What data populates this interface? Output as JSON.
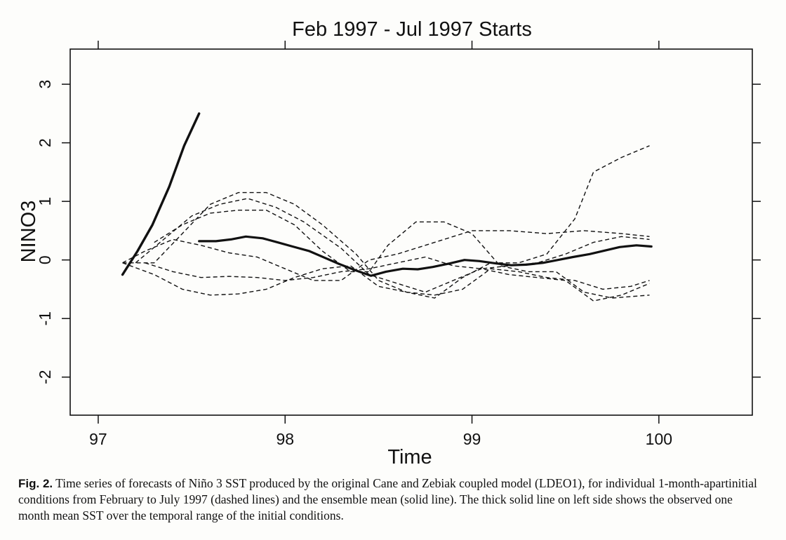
{
  "chart_data": {
    "type": "line",
    "title": "Feb 1997 - Jul 1997 Starts",
    "xlabel": "Time",
    "ylabel": "NINO3",
    "xlim": [
      96.85,
      100.5
    ],
    "ylim": [
      -2.65,
      3.6
    ],
    "xticks": [
      97,
      98,
      99,
      100
    ],
    "xtick_labels": [
      "97",
      "98",
      "99",
      "100"
    ],
    "yticks": [
      -2,
      -1,
      0,
      1,
      2,
      3
    ],
    "ytick_labels": [
      "-2",
      "-1",
      "0",
      "1",
      "2",
      "3"
    ],
    "grid": false,
    "legend": "none",
    "series": [
      {
        "style": "observed-thick-solid",
        "x": [
          97.13,
          97.21,
          97.29,
          97.38,
          97.46,
          97.54
        ],
        "y": [
          -0.25,
          0.15,
          0.6,
          1.25,
          1.95,
          2.5
        ]
      },
      {
        "style": "ensemble-mean-solid",
        "x": [
          97.54,
          97.63,
          97.71,
          97.79,
          97.88,
          97.96,
          98.04,
          98.13,
          98.21,
          98.29,
          98.38,
          98.46,
          98.54,
          98.63,
          98.71,
          98.79,
          98.88,
          98.96,
          99.04,
          99.13,
          99.21,
          99.29,
          99.38,
          99.46,
          99.54,
          99.63,
          99.71,
          99.79,
          99.88,
          99.96
        ],
        "y": [
          0.32,
          0.32,
          0.35,
          0.4,
          0.37,
          0.3,
          0.23,
          0.15,
          0.04,
          -0.07,
          -0.18,
          -0.27,
          -0.2,
          -0.15,
          -0.16,
          -0.12,
          -0.06,
          0.0,
          -0.02,
          -0.06,
          -0.09,
          -0.08,
          -0.05,
          0.0,
          0.05,
          0.1,
          0.16,
          0.22,
          0.25,
          0.23
        ]
      },
      {
        "style": "dashed",
        "x": [
          97.13,
          97.3,
          97.45,
          97.6,
          97.75,
          97.9,
          98.05,
          98.2,
          98.38,
          98.5,
          98.65,
          98.8,
          98.95,
          99.1,
          99.25,
          99.4,
          99.55,
          99.65,
          99.8,
          99.95
        ],
        "y": [
          -0.05,
          -0.05,
          0.45,
          0.95,
          1.15,
          1.15,
          0.95,
          0.6,
          0.1,
          -0.35,
          -0.55,
          -0.65,
          -0.3,
          -0.05,
          -0.05,
          0.1,
          0.7,
          1.5,
          1.75,
          1.95
        ]
      },
      {
        "style": "dashed",
        "x": [
          97.2,
          97.35,
          97.5,
          97.65,
          97.8,
          97.95,
          98.1,
          98.3,
          98.45,
          98.6,
          98.75,
          98.9,
          99.05,
          99.2,
          99.35,
          99.5,
          99.65,
          99.8,
          99.95
        ],
        "y": [
          -0.05,
          0.35,
          0.75,
          0.95,
          1.05,
          0.9,
          0.65,
          0.2,
          -0.25,
          -0.4,
          -0.55,
          -0.35,
          -0.15,
          -0.25,
          -0.3,
          -0.35,
          -0.7,
          -0.6,
          -0.4
        ]
      },
      {
        "style": "dashed",
        "x": [
          97.3,
          97.45,
          97.6,
          97.75,
          97.9,
          98.05,
          98.2,
          98.35,
          98.45,
          98.55,
          98.7,
          98.85,
          99.0,
          99.15,
          99.3,
          99.45,
          99.6,
          99.75,
          99.95
        ],
        "y": [
          0.3,
          0.6,
          0.8,
          0.85,
          0.85,
          0.6,
          0.15,
          -0.2,
          -0.2,
          0.25,
          0.65,
          0.65,
          0.45,
          -0.1,
          -0.2,
          -0.2,
          -0.55,
          -0.65,
          -0.6
        ]
      },
      {
        "style": "dashed",
        "x": [
          97.13,
          97.25,
          97.4,
          97.55,
          97.7,
          97.85,
          98.0,
          98.15,
          98.3,
          98.45,
          98.6,
          98.8,
          99.0,
          99.2,
          99.4,
          99.6,
          99.8,
          99.95
        ],
        "y": [
          -0.05,
          0.15,
          0.35,
          0.25,
          0.12,
          0.05,
          -0.15,
          -0.35,
          -0.35,
          0.0,
          0.1,
          0.3,
          0.5,
          0.5,
          0.45,
          0.5,
          0.45,
          0.4
        ]
      },
      {
        "style": "dashed",
        "x": [
          97.25,
          97.4,
          97.55,
          97.7,
          97.85,
          98.0,
          98.15,
          98.3,
          98.45,
          98.6,
          98.75,
          98.9,
          99.05,
          99.2,
          99.35,
          99.5,
          99.65,
          99.8,
          99.95
        ],
        "y": [
          -0.05,
          -0.2,
          -0.3,
          -0.28,
          -0.3,
          -0.35,
          -0.3,
          -0.2,
          -0.15,
          -0.05,
          0.05,
          -0.1,
          -0.15,
          -0.1,
          -0.05,
          0.1,
          0.3,
          0.4,
          0.35
        ]
      },
      {
        "style": "dashed",
        "x": [
          97.13,
          97.3,
          97.45,
          97.6,
          97.75,
          97.9,
          98.05,
          98.2,
          98.35,
          98.5,
          98.65,
          98.8,
          98.95,
          99.1,
          99.25,
          99.4,
          99.55,
          99.7,
          99.85,
          99.95
        ],
        "y": [
          -0.05,
          -0.25,
          -0.5,
          -0.6,
          -0.58,
          -0.5,
          -0.3,
          -0.15,
          -0.1,
          -0.45,
          -0.55,
          -0.6,
          -0.5,
          -0.15,
          -0.2,
          -0.3,
          -0.35,
          -0.5,
          -0.45,
          -0.35
        ]
      }
    ]
  },
  "caption": {
    "label": "Fig. 2.",
    "text": " Time series of forecasts of Niño 3 SST produced by the original Cane and Zebiak coupled model (LDEO1), for individual 1-month-apartinitial conditions from February to July 1997 (dashed lines) and the ensemble mean (solid line). The thick solid line on left side shows the observed one month mean SST over the temporal range of the initial conditions."
  }
}
